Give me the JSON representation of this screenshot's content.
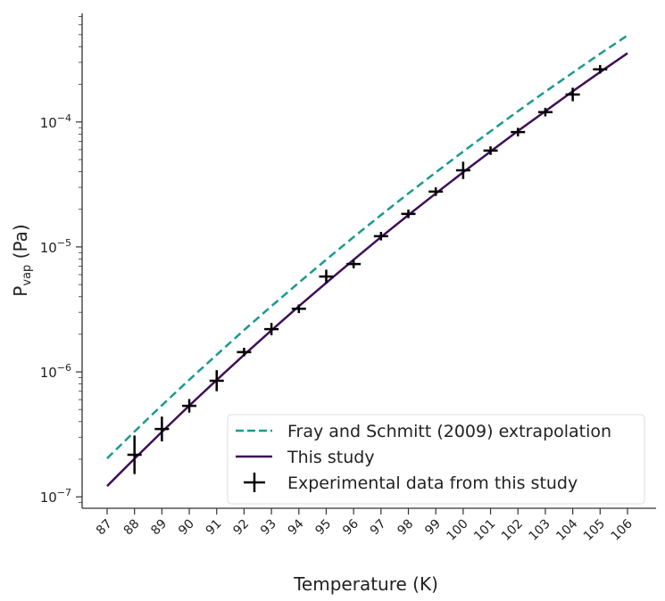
{
  "chart_data": {
    "type": "line",
    "title": "",
    "xlabel": "Temperature (K)",
    "ylabel_main": "P",
    "ylabel_sub": "vap",
    "ylabel_unit": " (Pa)",
    "xlim": [
      86.1,
      107
    ],
    "ylim": [
      8.1e-08,
      0.00074
    ],
    "yscale": "log",
    "grid": false,
    "legend_position": "bottom-right",
    "x_ticks": [
      87,
      88,
      89,
      90,
      91,
      92,
      93,
      94,
      95,
      96,
      97,
      98,
      99,
      100,
      101,
      102,
      103,
      104,
      105,
      106
    ],
    "y_ticks": [
      {
        "value": 1e-07,
        "base": "10",
        "exp": "−7"
      },
      {
        "value": 1e-06,
        "base": "10",
        "exp": "−6"
      },
      {
        "value": 1e-05,
        "base": "10",
        "exp": "−5"
      },
      {
        "value": 0.0001,
        "base": "10",
        "exp": "−4"
      }
    ],
    "series": [
      {
        "name": "Fray and Schmitt (2009) extrapolation",
        "style": "dashed",
        "color": "#1a9a8f",
        "x": [
          87,
          88,
          89,
          90,
          91,
          92,
          93,
          94,
          95,
          96,
          97,
          98,
          99,
          100,
          101,
          102,
          103,
          104,
          105,
          106
        ],
        "y": [
          2.03e-07,
          3.33e-07,
          5.4e-07,
          8.65e-07,
          1.37e-06,
          2.16e-06,
          3.36e-06,
          5.18e-06,
          7.91e-06,
          1.2e-05,
          1.8e-05,
          2.68e-05,
          3.95e-05,
          5.8e-05,
          8.43e-05,
          0.000122,
          0.000175,
          0.000248,
          0.000352,
          0.000493
        ]
      },
      {
        "name": "This study",
        "style": "solid",
        "color": "#3f0f57",
        "x": [
          87,
          88,
          89,
          90,
          91,
          92,
          93,
          94,
          95,
          96,
          97,
          98,
          99,
          100,
          101,
          102,
          103,
          104,
          105,
          106
        ],
        "y": [
          1.22e-07,
          2.02e-07,
          3.31e-07,
          5.37e-07,
          8.61e-07,
          1.37e-06,
          2.15e-06,
          3.35e-06,
          5.16e-06,
          7.89e-06,
          1.2e-05,
          1.8e-05,
          2.68e-05,
          3.96e-05,
          5.81e-05,
          8.47e-05,
          0.000122,
          0.000176,
          0.000251,
          0.000355
        ]
      },
      {
        "name": "Experimental data from this study",
        "style": "errorbar-marker",
        "color": "#000000",
        "x": [
          88,
          89,
          90,
          91,
          92,
          93,
          94,
          95,
          96,
          97,
          98,
          99,
          100,
          101,
          102,
          103,
          104,
          105
        ],
        "y": [
          2.17e-07,
          3.49e-07,
          5.35e-07,
          8.5e-07,
          1.44e-06,
          2.2e-06,
          3.2e-06,
          5.8e-06,
          7.3e-06,
          1.22e-05,
          1.84e-05,
          2.77e-05,
          4.1e-05,
          5.9e-05,
          8.3e-05,
          0.00012,
          0.000166,
          0.000264
        ],
        "yerr_log10": [
          0.14,
          0.085,
          0.04,
          0.07,
          0.02,
          0.035,
          0.02,
          0.04,
          0.02,
          0.02,
          0.02,
          0.02,
          0.055,
          0.02,
          0.02,
          0.02,
          0.04,
          0.02
        ]
      }
    ]
  }
}
